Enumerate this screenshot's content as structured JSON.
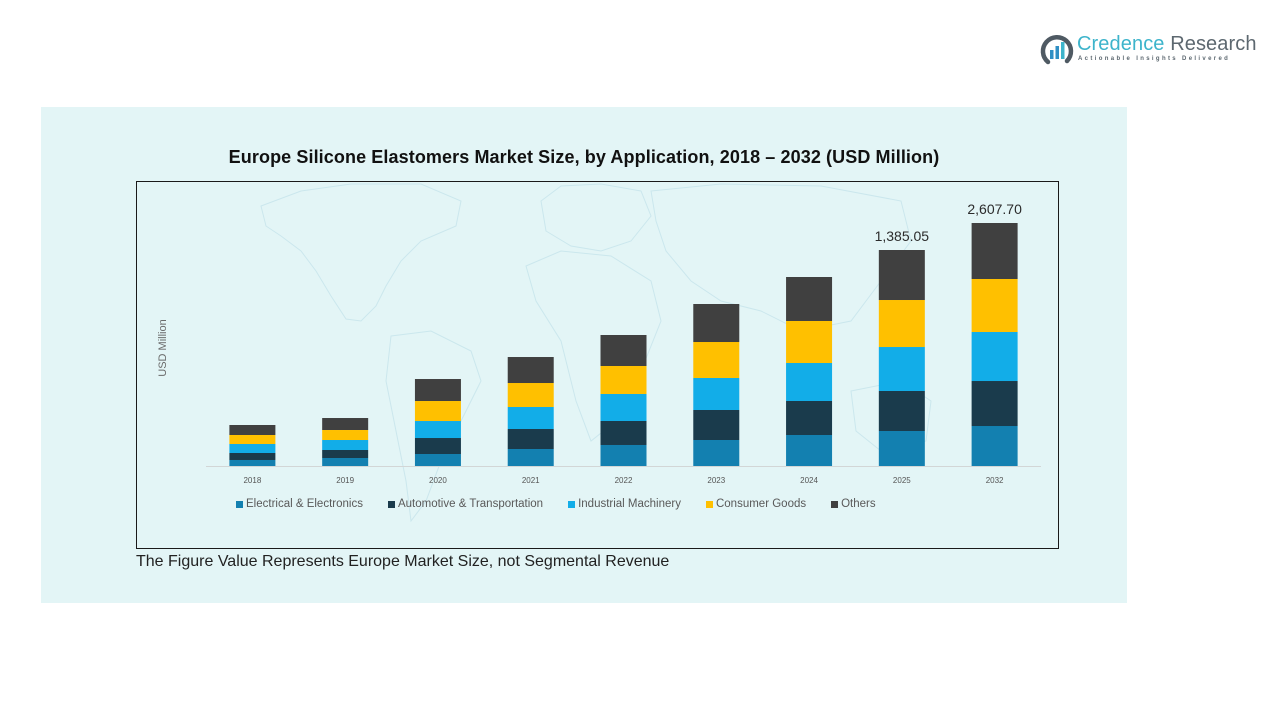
{
  "logo": {
    "name_part1": "Credence",
    "name_part2": " Research",
    "tagline": "Actionable Insights Delivered",
    "icon": "credence-logo-icon",
    "colors": {
      "primary": "#3db4cb",
      "secondary": "#5d6870"
    }
  },
  "footnote": "The Figure Value Represents Europe Market Size, not Segmental Revenue",
  "chart_data": {
    "type": "bar",
    "stacked": true,
    "title": "Europe Silicone Elastomers Market Size, by Application, 2018 – 2032 (USD Million)",
    "xlabel": "",
    "ylabel": "USD Million",
    "grid": false,
    "y_axis_ticks_visible": false,
    "legend_position": "bottom",
    "categories": [
      "2018",
      "2019",
      "2020",
      "2021",
      "2022",
      "2023",
      "2024",
      "2025",
      "2032"
    ],
    "series": [
      {
        "name": "Electrical & Electronics",
        "color": "#1380b0",
        "values": [
          38.5,
          51.3,
          76.9,
          109.0,
          134.7,
          166.7,
          198.8,
          224.4,
          429.2
        ]
      },
      {
        "name": "Automotive & Transportation",
        "color": "#1a3b4c",
        "values": [
          44.9,
          51.3,
          102.6,
          128.2,
          153.9,
          192.4,
          218.0,
          256.5,
          482.9
        ]
      },
      {
        "name": "Industrial Machinery",
        "color": "#12ade8",
        "values": [
          57.7,
          64.1,
          109.0,
          141.1,
          173.1,
          205.2,
          243.7,
          282.1,
          525.8
        ]
      },
      {
        "name": "Consumer Goods",
        "color": "#ffc000",
        "values": [
          57.7,
          64.1,
          128.2,
          153.9,
          179.5,
          230.8,
          269.3,
          301.4,
          568.8
        ]
      },
      {
        "name": "Others",
        "color": "#404040",
        "values": [
          64.1,
          76.9,
          141.1,
          166.7,
          198.8,
          243.7,
          282.1,
          320.65,
          601.0
        ]
      }
    ],
    "data_labels": [
      null,
      null,
      null,
      null,
      null,
      null,
      null,
      "1,385.05",
      "2,607.70"
    ]
  }
}
